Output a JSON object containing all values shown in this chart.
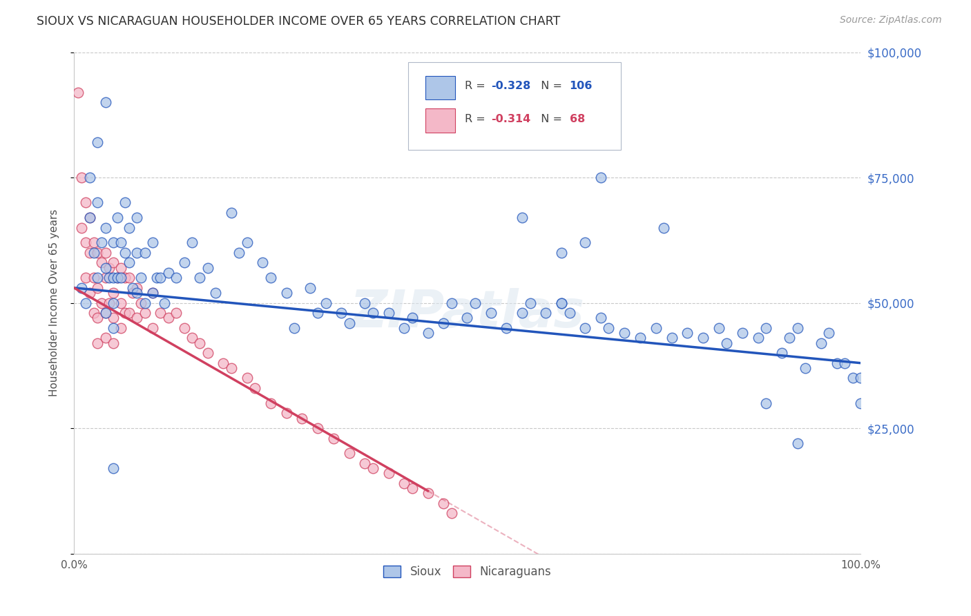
{
  "title": "SIOUX VS NICARAGUAN HOUSEHOLDER INCOME OVER 65 YEARS CORRELATION CHART",
  "source": "Source: ZipAtlas.com",
  "ylabel": "Householder Income Over 65 years",
  "sioux_R": -0.328,
  "sioux_N": 106,
  "nicaraguan_R": -0.314,
  "nicaraguan_N": 68,
  "sioux_color": "#aec6e8",
  "sioux_line_color": "#2255bb",
  "nicaraguan_color": "#f4b8c8",
  "nicaraguan_line_color": "#d04060",
  "background_color": "#ffffff",
  "grid_color": "#c8c8c8",
  "title_color": "#303030",
  "axis_label_color": "#505050",
  "right_axis_color": "#3b6cc7",
  "watermark": "ZIPatlas",
  "ylim": [
    0,
    100000
  ],
  "xlim": [
    0,
    1.0
  ],
  "yticks": [
    0,
    25000,
    50000,
    75000,
    100000
  ],
  "ytick_labels": [
    "",
    "$25,000",
    "$50,000",
    "$75,000",
    "$100,000"
  ],
  "xticks": [
    0.0,
    0.1,
    0.2,
    0.3,
    0.4,
    0.5,
    0.6,
    0.7,
    0.8,
    0.9,
    1.0
  ],
  "xtick_labels": [
    "0.0%",
    "",
    "",
    "",
    "",
    "",
    "",
    "",
    "",
    "",
    "100.0%"
  ],
  "sioux_x": [
    0.01,
    0.015,
    0.02,
    0.02,
    0.025,
    0.03,
    0.03,
    0.03,
    0.035,
    0.04,
    0.04,
    0.04,
    0.045,
    0.05,
    0.05,
    0.05,
    0.05,
    0.055,
    0.055,
    0.06,
    0.06,
    0.065,
    0.065,
    0.07,
    0.07,
    0.075,
    0.08,
    0.08,
    0.08,
    0.085,
    0.09,
    0.09,
    0.1,
    0.1,
    0.105,
    0.11,
    0.115,
    0.12,
    0.13,
    0.14,
    0.15,
    0.16,
    0.17,
    0.18,
    0.2,
    0.21,
    0.22,
    0.24,
    0.25,
    0.27,
    0.28,
    0.3,
    0.31,
    0.32,
    0.34,
    0.35,
    0.37,
    0.38,
    0.4,
    0.42,
    0.43,
    0.45,
    0.47,
    0.48,
    0.5,
    0.51,
    0.53,
    0.55,
    0.57,
    0.58,
    0.6,
    0.62,
    0.63,
    0.65,
    0.67,
    0.68,
    0.7,
    0.72,
    0.74,
    0.76,
    0.78,
    0.8,
    0.82,
    0.83,
    0.85,
    0.87,
    0.88,
    0.9,
    0.91,
    0.92,
    0.93,
    0.95,
    0.96,
    0.97,
    0.98,
    0.99,
    1.0,
    1.0,
    0.62,
    0.04,
    0.05,
    0.57,
    0.67,
    0.62,
    0.65,
    0.75,
    0.88,
    0.92
  ],
  "sioux_y": [
    53000,
    50000,
    75000,
    67000,
    60000,
    82000,
    70000,
    55000,
    62000,
    65000,
    57000,
    48000,
    55000,
    62000,
    55000,
    50000,
    45000,
    67000,
    55000,
    62000,
    55000,
    70000,
    60000,
    65000,
    58000,
    53000,
    67000,
    60000,
    52000,
    55000,
    60000,
    50000,
    62000,
    52000,
    55000,
    55000,
    50000,
    56000,
    55000,
    58000,
    62000,
    55000,
    57000,
    52000,
    68000,
    60000,
    62000,
    58000,
    55000,
    52000,
    45000,
    53000,
    48000,
    50000,
    48000,
    46000,
    50000,
    48000,
    48000,
    45000,
    47000,
    44000,
    46000,
    50000,
    47000,
    50000,
    48000,
    45000,
    48000,
    50000,
    48000,
    50000,
    48000,
    45000,
    47000,
    45000,
    44000,
    43000,
    45000,
    43000,
    44000,
    43000,
    45000,
    42000,
    44000,
    43000,
    45000,
    40000,
    43000,
    45000,
    37000,
    42000,
    44000,
    38000,
    38000,
    35000,
    35000,
    30000,
    50000,
    90000,
    17000,
    67000,
    75000,
    60000,
    62000,
    65000,
    30000,
    22000
  ],
  "nicaraguan_x": [
    0.005,
    0.01,
    0.01,
    0.015,
    0.015,
    0.015,
    0.02,
    0.02,
    0.02,
    0.025,
    0.025,
    0.025,
    0.03,
    0.03,
    0.03,
    0.03,
    0.035,
    0.035,
    0.04,
    0.04,
    0.04,
    0.04,
    0.045,
    0.045,
    0.05,
    0.05,
    0.05,
    0.05,
    0.055,
    0.06,
    0.06,
    0.06,
    0.065,
    0.065,
    0.07,
    0.07,
    0.075,
    0.08,
    0.08,
    0.085,
    0.09,
    0.1,
    0.1,
    0.11,
    0.12,
    0.13,
    0.14,
    0.15,
    0.16,
    0.17,
    0.19,
    0.2,
    0.22,
    0.23,
    0.25,
    0.27,
    0.29,
    0.31,
    0.33,
    0.35,
    0.37,
    0.38,
    0.4,
    0.42,
    0.43,
    0.45,
    0.47,
    0.48
  ],
  "nicaraguan_y": [
    92000,
    75000,
    65000,
    70000,
    62000,
    55000,
    67000,
    60000,
    52000,
    62000,
    55000,
    48000,
    60000,
    53000,
    47000,
    42000,
    58000,
    50000,
    60000,
    55000,
    48000,
    43000,
    57000,
    50000,
    58000,
    52000,
    47000,
    42000,
    55000,
    57000,
    50000,
    45000,
    55000,
    48000,
    55000,
    48000,
    52000,
    53000,
    47000,
    50000,
    48000,
    52000,
    45000,
    48000,
    47000,
    48000,
    45000,
    43000,
    42000,
    40000,
    38000,
    37000,
    35000,
    33000,
    30000,
    28000,
    27000,
    25000,
    23000,
    20000,
    18000,
    17000,
    16000,
    14000,
    13000,
    12000,
    10000,
    8000
  ]
}
